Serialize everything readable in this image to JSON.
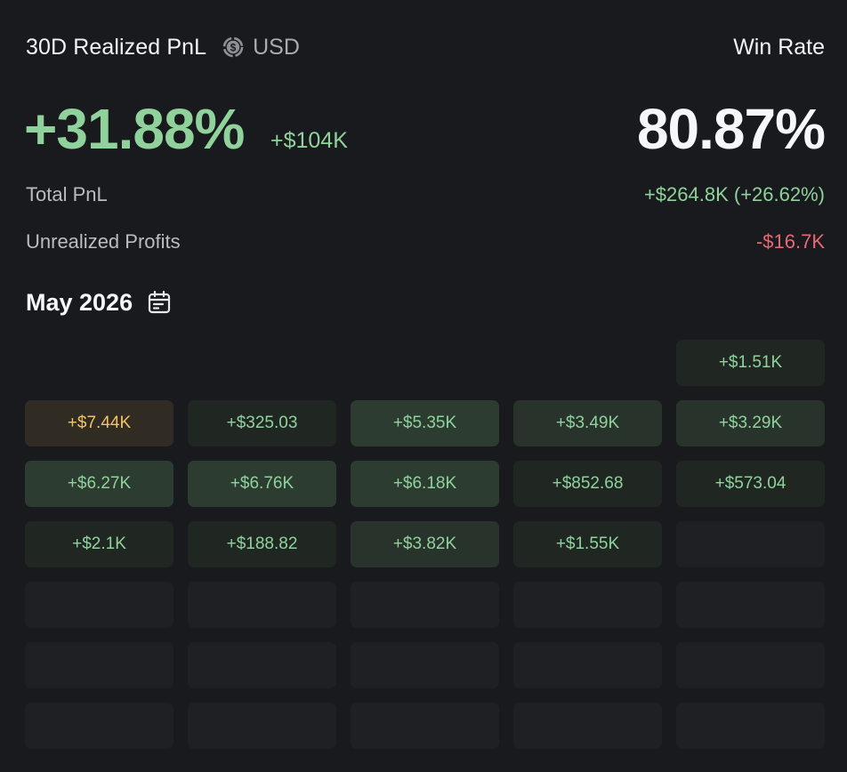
{
  "header": {
    "title": "30D Realized PnL",
    "currency_icon": "dollar-cycle-icon",
    "currency": "USD",
    "win_rate_label": "Win Rate"
  },
  "summary": {
    "realized_pct": "+31.88%",
    "realized_abs": "+$104K",
    "win_rate": "80.87%",
    "total_pnl_label": "Total PnL",
    "total_pnl_value": "+$264.8K (+26.62%)",
    "unrealized_label": "Unrealized Profits",
    "unrealized_value": "-$16.7K"
  },
  "calendar": {
    "month": "May 2026",
    "icon": "calendar-icon",
    "colors": {
      "positive": "#8fd29c",
      "negative": "#e56a75",
      "top_day": "#f3c461"
    },
    "cells": [
      {
        "value": "",
        "level": "empty-slot"
      },
      {
        "value": "",
        "level": "empty-slot"
      },
      {
        "value": "",
        "level": "empty-slot"
      },
      {
        "value": "",
        "level": "empty-slot"
      },
      {
        "value": "+$1.51K",
        "level": "lvl1"
      },
      {
        "value": "+$7.44K",
        "level": "top"
      },
      {
        "value": "+$325.03",
        "level": "lvl1"
      },
      {
        "value": "+$5.35K",
        "level": "lvl3"
      },
      {
        "value": "+$3.49K",
        "level": "lvl2"
      },
      {
        "value": "+$3.29K",
        "level": "lvl2"
      },
      {
        "value": "+$6.27K",
        "level": "lvl3"
      },
      {
        "value": "+$6.76K",
        "level": "lvl3"
      },
      {
        "value": "+$6.18K",
        "level": "lvl3"
      },
      {
        "value": "+$852.68",
        "level": "lvl1"
      },
      {
        "value": "+$573.04",
        "level": "lvl1"
      },
      {
        "value": "+$2.1K",
        "level": "lvl1"
      },
      {
        "value": "+$188.82",
        "level": "lvl1"
      },
      {
        "value": "+$3.82K",
        "level": "lvl2"
      },
      {
        "value": "+$1.55K",
        "level": "lvl1"
      },
      {
        "value": "",
        "level": "none"
      },
      {
        "value": "",
        "level": "none"
      },
      {
        "value": "",
        "level": "none"
      },
      {
        "value": "",
        "level": "none"
      },
      {
        "value": "",
        "level": "none"
      },
      {
        "value": "",
        "level": "none"
      },
      {
        "value": "",
        "level": "none"
      },
      {
        "value": "",
        "level": "none"
      },
      {
        "value": "",
        "level": "none"
      },
      {
        "value": "",
        "level": "none"
      },
      {
        "value": "",
        "level": "none"
      },
      {
        "value": "",
        "level": "none"
      },
      {
        "value": "",
        "level": "none"
      },
      {
        "value": "",
        "level": "none"
      },
      {
        "value": "",
        "level": "none"
      },
      {
        "value": "",
        "level": "none"
      }
    ]
  }
}
